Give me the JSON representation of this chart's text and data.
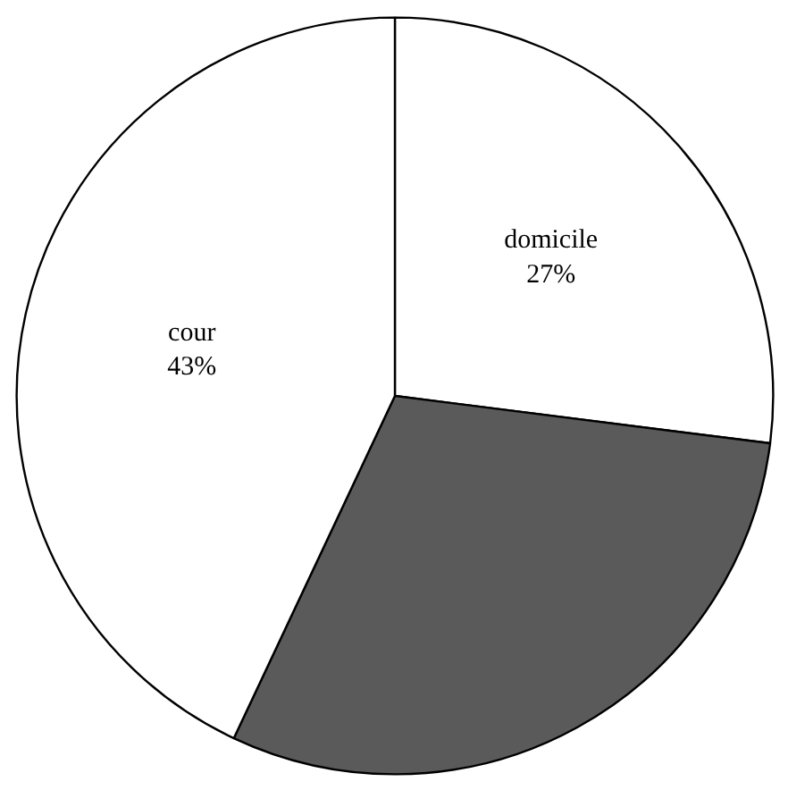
{
  "chart_data": {
    "type": "pie",
    "categories": [
      "domicile",
      null,
      "cour"
    ],
    "values": [
      27,
      30,
      43
    ],
    "colors": [
      "#ffffff",
      "#5a5a5a",
      "#ffffff"
    ],
    "value_labels": [
      "27%",
      null,
      "43%"
    ]
  }
}
